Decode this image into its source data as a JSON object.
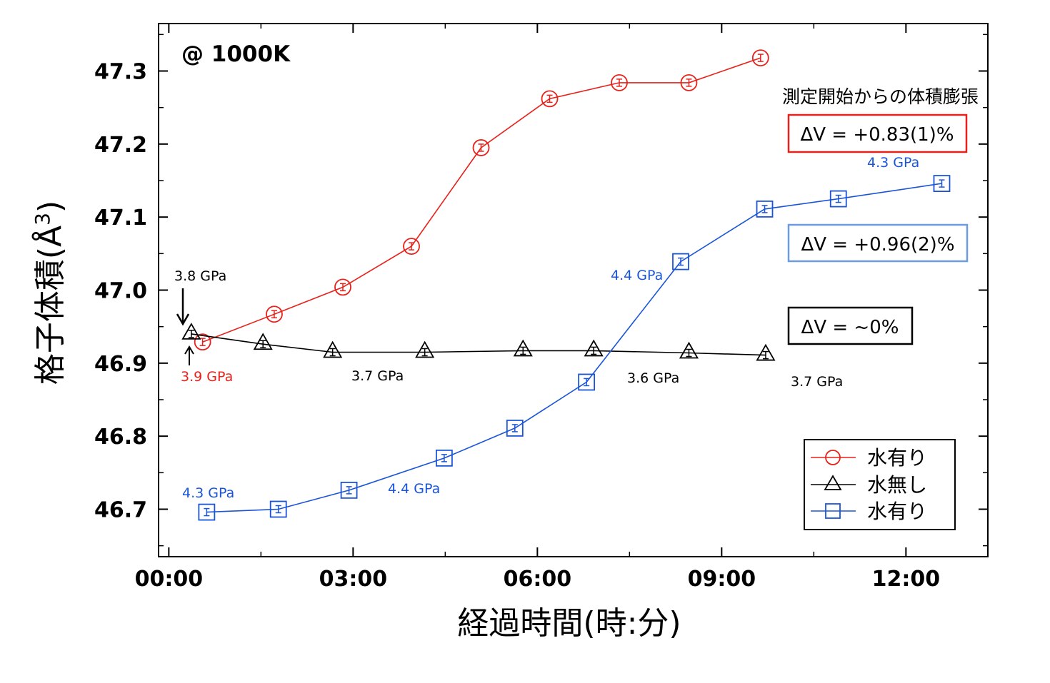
{
  "chart_data": {
    "type": "line",
    "xlabel": "経過時間(時:分)",
    "ylabel": "格子体積(Å",
    "ylabel_sup": "3",
    "ylabel_close": ")",
    "x_unit": "minutes",
    "xlim": [
      -10,
      800
    ],
    "ylim": [
      46.635,
      47.365
    ],
    "x_ticks": [
      {
        "value": 0,
        "label": "00:00"
      },
      {
        "value": 180,
        "label": "03:00"
      },
      {
        "value": 360,
        "label": "06:00"
      },
      {
        "value": 540,
        "label": "09:00"
      },
      {
        "value": 720,
        "label": "12:00"
      }
    ],
    "y_ticks": [
      {
        "value": 46.7,
        "label": "46.7"
      },
      {
        "value": 46.8,
        "label": "46.8"
      },
      {
        "value": 46.9,
        "label": "46.9"
      },
      {
        "value": 47.0,
        "label": "47.0"
      },
      {
        "value": 47.1,
        "label": "47.1"
      },
      {
        "value": 47.2,
        "label": "47.2"
      },
      {
        "value": 47.3,
        "label": "47.3"
      }
    ],
    "grid": false,
    "legend_position": "bottom-right",
    "series": [
      {
        "name": "水有り",
        "color": "#e8211b",
        "marker": "circle",
        "x": [
          33,
          103,
          170,
          237,
          305,
          372,
          440,
          508,
          578
        ],
        "y": [
          46.929,
          46.967,
          47.004,
          47.06,
          47.195,
          47.262,
          47.284,
          47.284,
          47.318
        ]
      },
      {
        "name": "水無し",
        "color": "#000000",
        "marker": "triangle",
        "x": [
          22,
          92,
          160,
          250,
          346,
          415,
          508,
          583
        ],
        "y": [
          46.94,
          46.926,
          46.915,
          46.915,
          46.917,
          46.917,
          46.914,
          46.911
        ]
      },
      {
        "name": "水有り",
        "color": "#1a55d8",
        "marker": "square",
        "x": [
          37,
          107,
          176,
          269,
          338,
          408,
          500,
          582,
          654,
          755
        ],
        "y": [
          46.696,
          46.7,
          46.726,
          46.77,
          46.811,
          46.874,
          47.039,
          47.111,
          47.125,
          47.146
        ]
      }
    ],
    "annotations": [
      {
        "text": "@ 1000K",
        "color": "#000000"
      },
      {
        "text": "測定開始からの体積膨張",
        "color": "#000000"
      },
      {
        "text": "ΔV = +0.83(1)%",
        "color": "#000000",
        "border": "#e8211b"
      },
      {
        "text": "ΔV = +0.96(2)%",
        "color": "#000000",
        "border": "#6d9be0"
      },
      {
        "text": "ΔV = ~0%",
        "color": "#000000",
        "border": "#000000"
      },
      {
        "text": "3.8 GPa",
        "color": "#000000"
      },
      {
        "text": "3.9 GPa",
        "color": "#e8211b"
      },
      {
        "text": "3.7 GPa",
        "color": "#000000"
      },
      {
        "text": "3.6 GPa",
        "color": "#000000"
      },
      {
        "text": "3.7 GPa",
        "color": "#000000"
      },
      {
        "text": "4.3 GPa",
        "color": "#1a55d8"
      },
      {
        "text": "4.4 GPa",
        "color": "#1a55d8"
      },
      {
        "text": "4.4 GPa",
        "color": "#1a55d8"
      },
      {
        "text": "4.3 GPa",
        "color": "#1a55d8"
      }
    ]
  }
}
